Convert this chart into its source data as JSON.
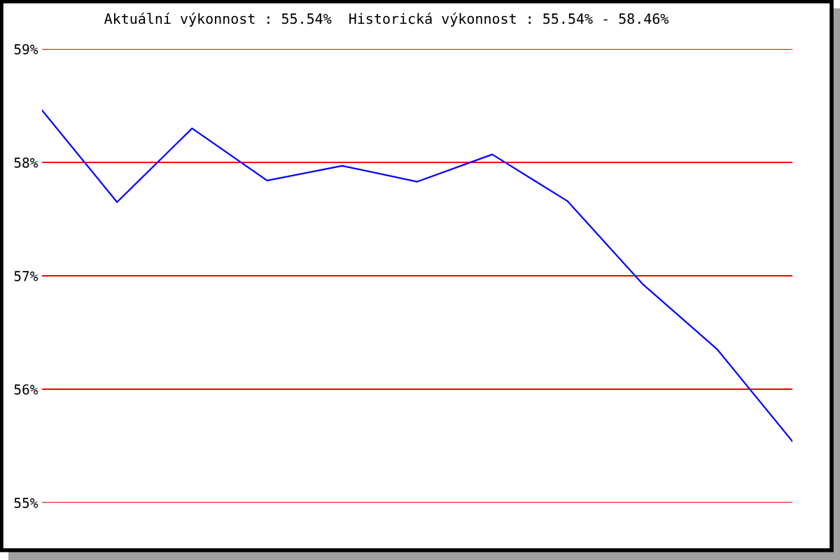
{
  "chart_data": {
    "type": "line",
    "title": "Aktuální výkonnost : 55.54%  Historická výkonnost : 55.54% - 58.46%",
    "categories": [
      null,
      null,
      null,
      null,
      null,
      null,
      null,
      null,
      null,
      null,
      null
    ],
    "series": [
      {
        "color": "#0000ff",
        "values": [
          58.46,
          57.65,
          58.3,
          57.84,
          57.97,
          57.83,
          58.07,
          57.66,
          56.93,
          56.35,
          55.54
        ]
      }
    ],
    "ylim": [
      55,
      59
    ],
    "yticks": [
      {
        "value": 55,
        "label": "55%"
      },
      {
        "value": 56,
        "label": "56%"
      },
      {
        "value": 57,
        "label": "57%"
      },
      {
        "value": 58,
        "label": "58%"
      },
      {
        "value": 59,
        "label": "59%"
      }
    ],
    "grid": "y",
    "marker": "none",
    "line_style": "solid",
    "tick_labels": "y"
  }
}
